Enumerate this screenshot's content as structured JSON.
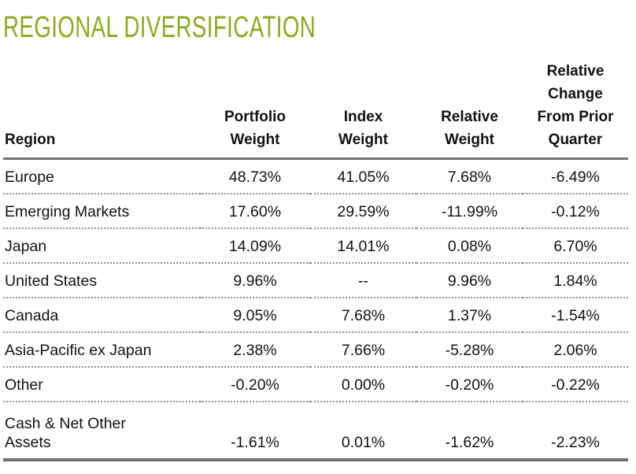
{
  "title": "REGIONAL DIVERSIFICATION",
  "colors": {
    "title_green": "#8CAA1E",
    "rule_gray": "#6E7277",
    "dot_gray": "#8F8F8F",
    "text_black": "#121212"
  },
  "table": {
    "columns": [
      {
        "id": "region",
        "label": "Region",
        "lines": [
          "Region"
        ]
      },
      {
        "id": "portfolio_weight",
        "label": "Portfolio Weight",
        "lines": [
          "Portfolio",
          "Weight"
        ]
      },
      {
        "id": "index_weight",
        "label": "Index Weight",
        "lines": [
          "Index",
          "Weight"
        ]
      },
      {
        "id": "relative_weight",
        "label": "Relative Weight",
        "lines": [
          "Relative",
          "Weight"
        ]
      },
      {
        "id": "relative_change",
        "label": "Relative Change From Prior Quarter",
        "lines": [
          "Relative",
          "Change",
          "From Prior",
          "Quarter"
        ]
      }
    ],
    "rows": [
      {
        "region": "Europe",
        "portfolio_weight": "48.73%",
        "index_weight": "41.05%",
        "relative_weight": "7.68%",
        "relative_change": "-6.49%"
      },
      {
        "region": "Emerging Markets",
        "portfolio_weight": "17.60%",
        "index_weight": "29.59%",
        "relative_weight": "-11.99%",
        "relative_change": "-0.12%"
      },
      {
        "region": "Japan",
        "portfolio_weight": "14.09%",
        "index_weight": "14.01%",
        "relative_weight": "0.08%",
        "relative_change": "6.70%"
      },
      {
        "region": "United States",
        "portfolio_weight": "9.96%",
        "index_weight": "--",
        "relative_weight": "9.96%",
        "relative_change": "1.84%"
      },
      {
        "region": "Canada",
        "portfolio_weight": "9.05%",
        "index_weight": "7.68%",
        "relative_weight": "1.37%",
        "relative_change": "-1.54%"
      },
      {
        "region": "Asia-Pacific ex Japan",
        "portfolio_weight": "2.38%",
        "index_weight": "7.66%",
        "relative_weight": "-5.28%",
        "relative_change": "2.06%"
      },
      {
        "region": "Other",
        "portfolio_weight": "-0.20%",
        "index_weight": "0.00%",
        "relative_weight": "-0.20%",
        "relative_change": "-0.22%"
      },
      {
        "region": "Cash & Net Other\nAssets",
        "portfolio_weight": "-1.61%",
        "index_weight": "0.01%",
        "relative_weight": "-1.62%",
        "relative_change": "-2.23%"
      }
    ]
  }
}
